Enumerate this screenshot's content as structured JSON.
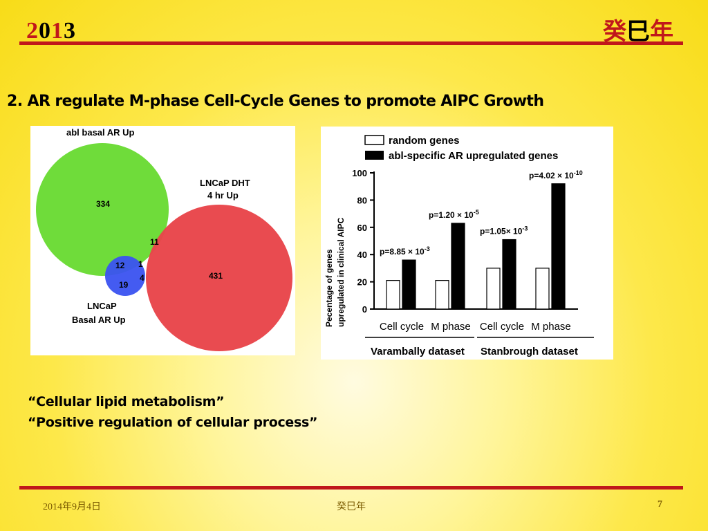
{
  "header": {
    "year_digits": [
      "2",
      "0",
      "1",
      "3"
    ],
    "year_colors": [
      "#c0171b",
      "#000000",
      "#c0171b",
      "#000000"
    ],
    "cn_chars": [
      "癸",
      "巳",
      "年"
    ],
    "cn_colors": [
      "#c0171b",
      "#000000",
      "#c0171b"
    ]
  },
  "slide": {
    "title": "2. AR regulate M-phase Cell-Cycle Genes to promote AIPC Growth",
    "notes": [
      "“Cellular lipid metabolism”",
      "“Positive regulation of cellular process”"
    ]
  },
  "venn": {
    "sets": [
      {
        "label_lines": [
          "abl basal AR Up"
        ],
        "color": "#6fdc3a"
      },
      {
        "label_lines": [
          "LNCaP DHT",
          "4 hr Up"
        ],
        "color": "#e8454a"
      },
      {
        "label_lines": [
          "LNCaP",
          "Basal AR Up"
        ],
        "color": "#3a52f0"
      }
    ],
    "regions": [
      {
        "name": "green-only",
        "value": "334"
      },
      {
        "name": "green-red",
        "value": "11"
      },
      {
        "name": "red-only",
        "value": "431"
      },
      {
        "name": "green-blue",
        "value": "12"
      },
      {
        "name": "all-three",
        "value": "1"
      },
      {
        "name": "blue-only",
        "value": "19"
      },
      {
        "name": "red-blue",
        "value": "4"
      }
    ]
  },
  "chart_data": {
    "type": "bar",
    "categories": [
      "Cell cycle",
      "M phase",
      "Cell cycle",
      "M phase"
    ],
    "groups": [
      "Varambally dataset",
      "Stanbrough  dataset"
    ],
    "series": [
      {
        "name": "random genes",
        "values": [
          21,
          21,
          30,
          30
        ],
        "fill": "#ffffff"
      },
      {
        "name": "abl-specific AR upregulated genes",
        "values": [
          36,
          63,
          51,
          92
        ],
        "fill": "#000000"
      }
    ],
    "pvalues": [
      {
        "mantissa": "p=8.85 × 10",
        "exp": "-3"
      },
      {
        "mantissa": "p=1.20 × 10",
        "exp": "-5"
      },
      {
        "mantissa": "p=1.05× 10",
        "exp": "-3"
      },
      {
        "mantissa": "p=4.02 × 10",
        "exp": "-10"
      }
    ],
    "ylabel_lines": [
      "Pecentage of genes",
      "upregulated in clinical AIPC"
    ],
    "yticks": [
      0,
      20,
      40,
      60,
      80,
      100
    ],
    "ylim": [
      0,
      100
    ],
    "legend_position": "top"
  },
  "footer": {
    "date": "2014年9月4日",
    "center": "癸巳年",
    "page": "7"
  }
}
